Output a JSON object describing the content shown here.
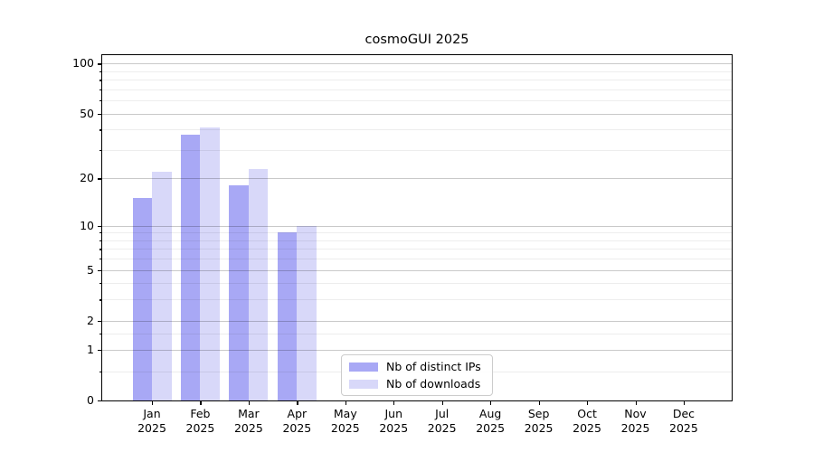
{
  "chart_data": {
    "type": "bar",
    "title": "cosmoGUI 2025",
    "categories": [
      "Jan",
      "Feb",
      "Mar",
      "Apr",
      "May",
      "Jun",
      "Jul",
      "Aug",
      "Sep",
      "Oct",
      "Nov",
      "Dec"
    ],
    "category_year": "2025",
    "series": [
      {
        "name": "Nb of distinct IPs",
        "color": "#a8a8f5",
        "values": [
          15,
          37,
          18,
          9,
          0,
          0,
          0,
          0,
          0,
          0,
          0,
          0
        ]
      },
      {
        "name": "Nb of downloads",
        "color": "#d8d8f9",
        "values": [
          22,
          41,
          23,
          10,
          0,
          0,
          0,
          0,
          0,
          0,
          0,
          0
        ]
      }
    ],
    "y_axis": {
      "scale": "log1p",
      "major_ticks": [
        0,
        1,
        2,
        5,
        10,
        20,
        50,
        100
      ],
      "minor_ticks": [
        0.5,
        1.5,
        3,
        4,
        6,
        7,
        8,
        9,
        30,
        40,
        60,
        70,
        80,
        90
      ],
      "ylim": [
        0,
        114
      ]
    },
    "grid": true,
    "legend_position": "lower center"
  }
}
